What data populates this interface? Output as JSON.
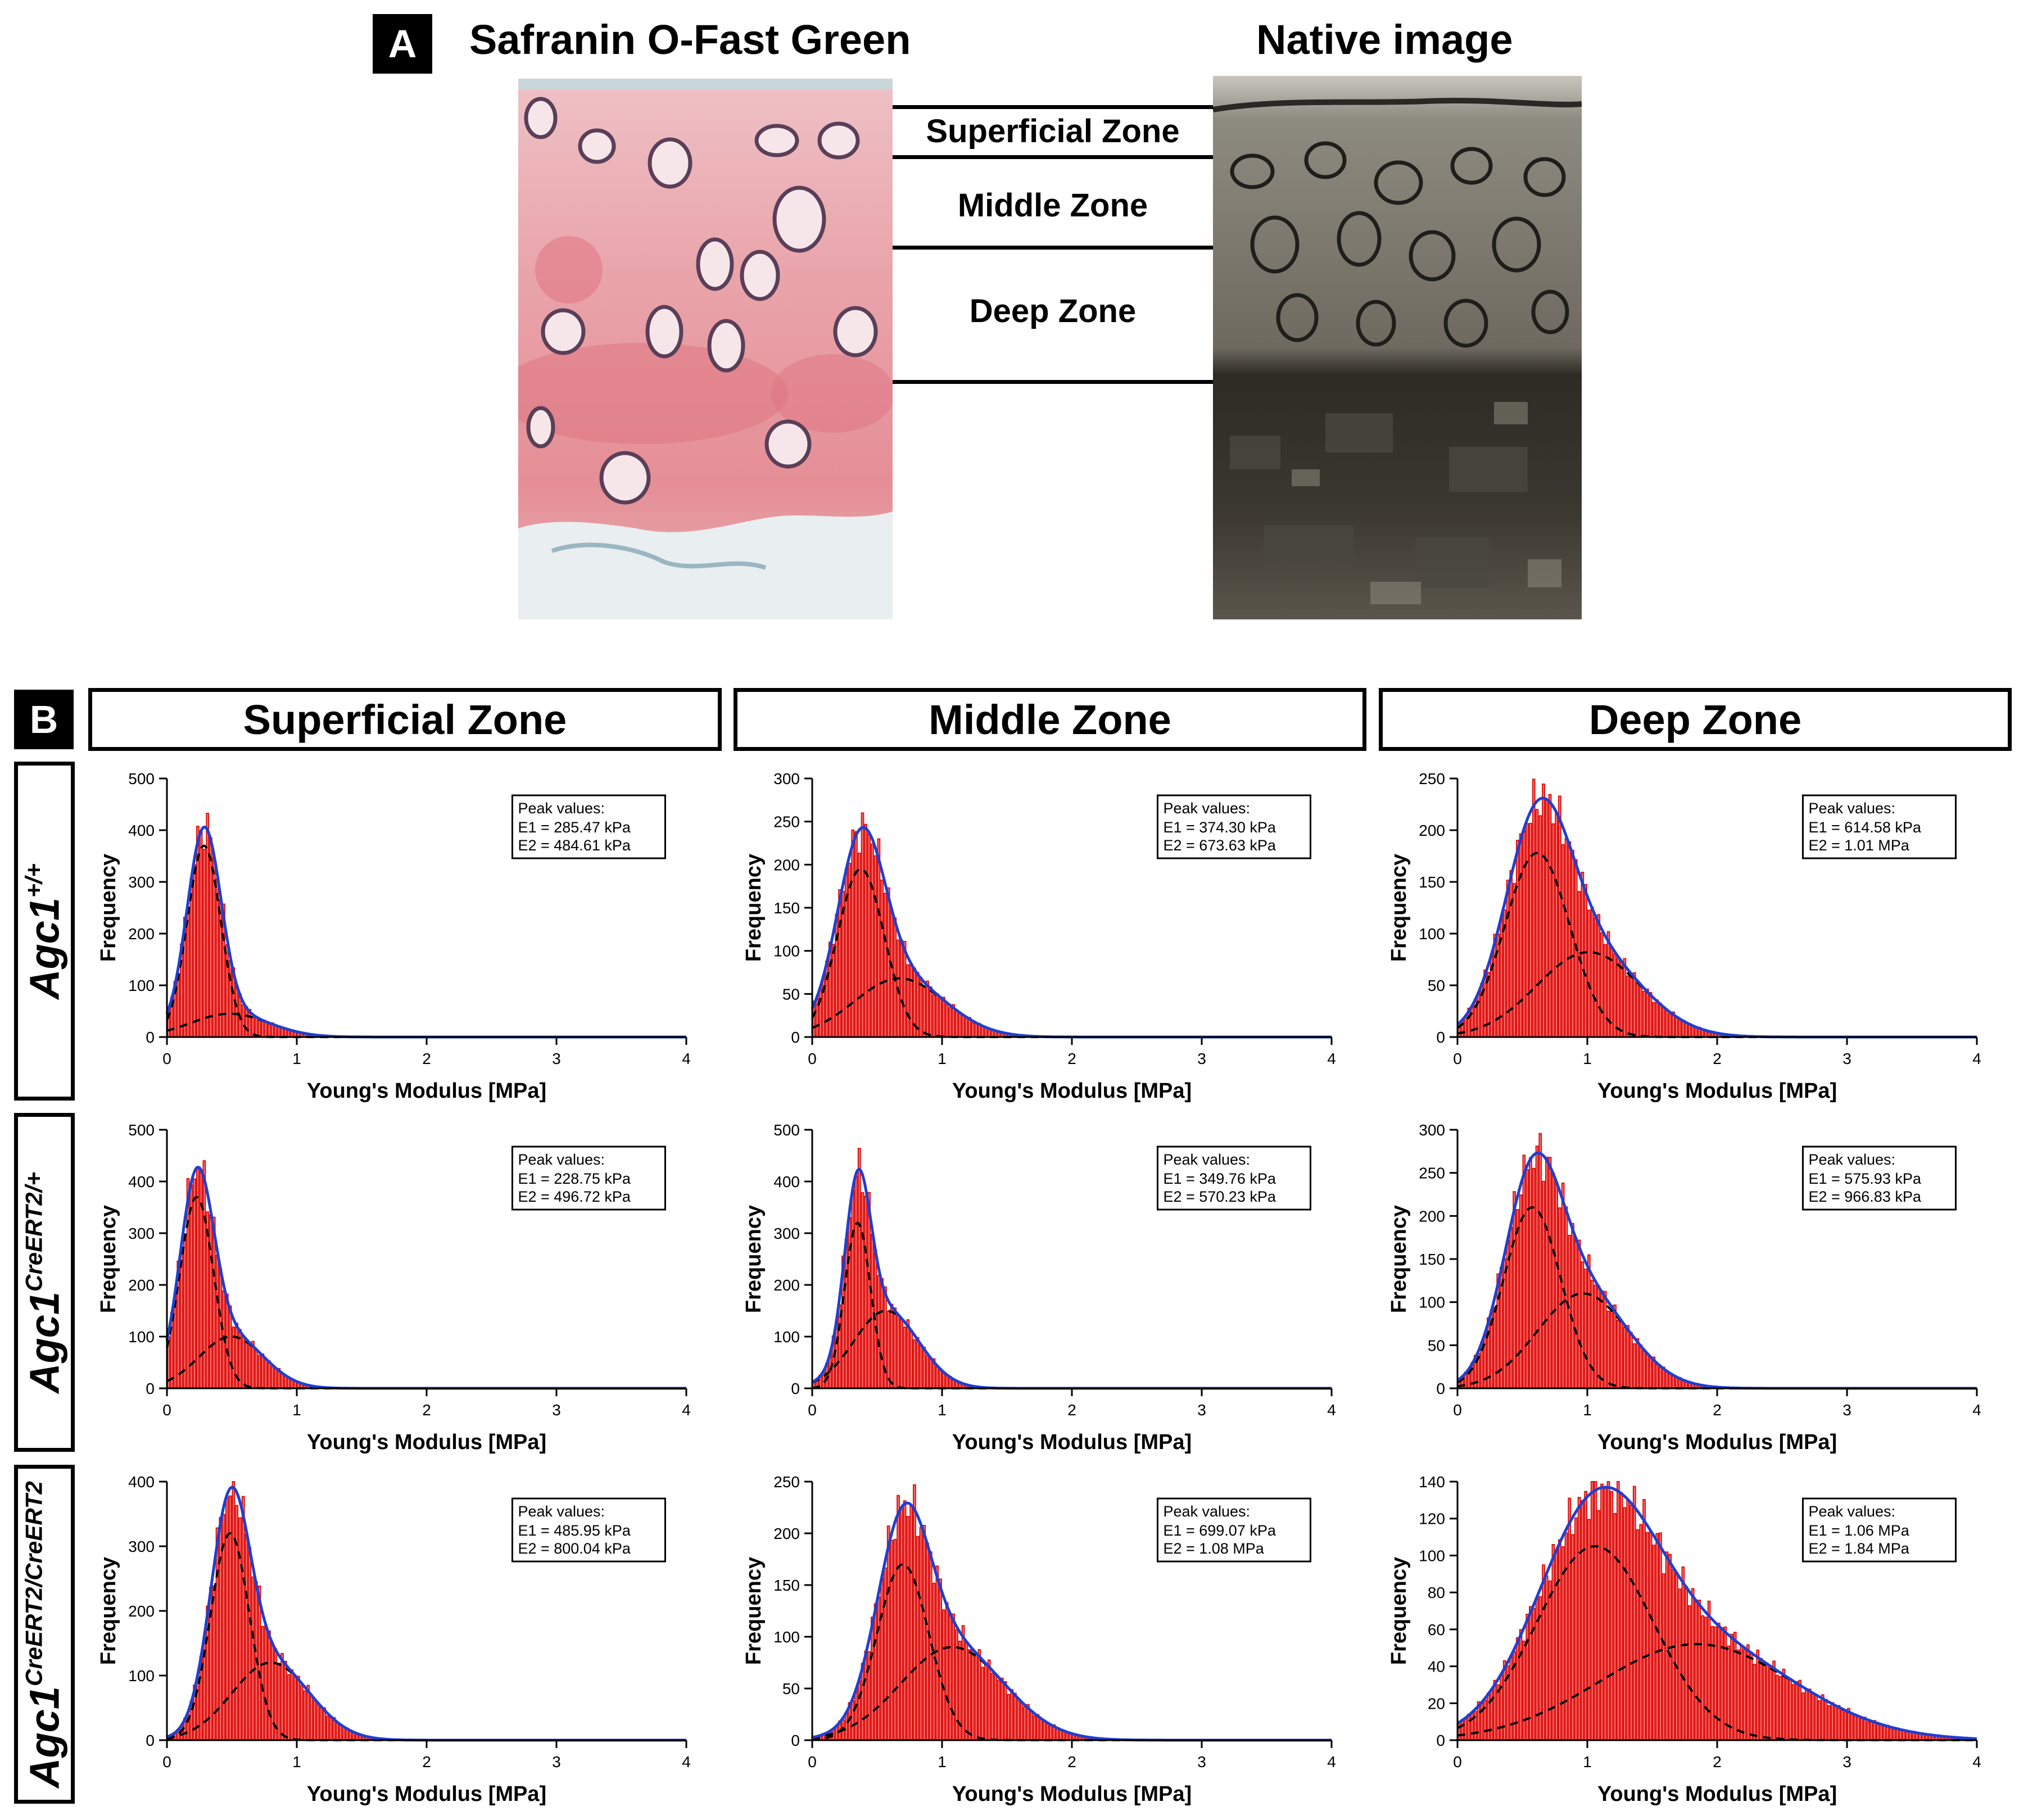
{
  "panel_a": {
    "letter": "A",
    "left_title": "Safranin O-Fast Green",
    "right_title": "Native image",
    "zones": [
      "Superficial Zone",
      "Middle Zone",
      "Deep Zone"
    ]
  },
  "panel_b": {
    "letter": "B",
    "columns": [
      "Superficial Zone",
      "Middle Zone",
      "Deep Zone"
    ],
    "rows": [
      {
        "base": "Agc1",
        "sup": "+/+"
      },
      {
        "base": "Agc1",
        "sup": "CreERT2/+"
      },
      {
        "base": "Agc1",
        "sup": "CreERT2/CreERT2"
      }
    ]
  },
  "colors": {
    "bar_fill": "#f4807a",
    "bar_edge": "#e01010",
    "fit_line": "#1f3fd0",
    "component_line": "#000000",
    "stain_pink": "#e79aa0",
    "native_gray": "#6e6a60"
  },
  "chart_data": [
    {
      "type": "bar",
      "row": 0,
      "col": 0,
      "xlabel": "Young's Modulus [MPa]",
      "ylabel": "Frequency",
      "xlim": [
        0,
        4
      ],
      "xticks": [
        0,
        1,
        2,
        3,
        4
      ],
      "ylim": [
        0,
        500
      ],
      "yticks": [
        0,
        100,
        200,
        300,
        400,
        500
      ],
      "peak_title": "Peak values:",
      "peak_lines": [
        "E1 = 285.47 kPa",
        "E2 = 484.61 kPa"
      ],
      "components": [
        {
          "mu": 0.28547,
          "sigma": 0.13,
          "amp": 370
        },
        {
          "mu": 0.48461,
          "sigma": 0.3,
          "amp": 45
        }
      ]
    },
    {
      "type": "bar",
      "row": 0,
      "col": 1,
      "xlabel": "Young's Modulus [MPa]",
      "ylabel": "Frequency",
      "xlim": [
        0,
        4
      ],
      "xticks": [
        0,
        1,
        2,
        3,
        4
      ],
      "ylim": [
        0,
        300
      ],
      "yticks": [
        0,
        50,
        100,
        150,
        200,
        250,
        300
      ],
      "peak_title": "Peak values:",
      "peak_lines": [
        "E1 = 374.30 kPa",
        "E2 = 673.63 kPa"
      ],
      "components": [
        {
          "mu": 0.3743,
          "sigma": 0.18,
          "amp": 195
        },
        {
          "mu": 0.67363,
          "sigma": 0.35,
          "amp": 68
        }
      ]
    },
    {
      "type": "bar",
      "row": 0,
      "col": 2,
      "xlabel": "Young's Modulus [MPa]",
      "ylabel": "Frequency",
      "xlim": [
        0,
        4
      ],
      "xticks": [
        0,
        1,
        2,
        3,
        4
      ],
      "ylim": [
        0,
        250
      ],
      "yticks": [
        0,
        50,
        100,
        150,
        200,
        250
      ],
      "peak_title": "Peak values:",
      "peak_lines": [
        "E1 = 614.58 kPa",
        "E2 = 1.01 MPa"
      ],
      "components": [
        {
          "mu": 0.61458,
          "sigma": 0.25,
          "amp": 178
        },
        {
          "mu": 1.01,
          "sigma": 0.4,
          "amp": 82
        }
      ]
    },
    {
      "type": "bar",
      "row": 1,
      "col": 0,
      "xlabel": "Young's Modulus [MPa]",
      "ylabel": "Frequency",
      "xlim": [
        0,
        4
      ],
      "xticks": [
        0,
        1,
        2,
        3,
        4
      ],
      "ylim": [
        0,
        500
      ],
      "yticks": [
        0,
        100,
        200,
        300,
        400,
        500
      ],
      "peak_title": "Peak values:",
      "peak_lines": [
        "E1 = 228.75 kPa",
        "E2 = 496.72 kPa"
      ],
      "components": [
        {
          "mu": 0.22875,
          "sigma": 0.13,
          "amp": 370
        },
        {
          "mu": 0.49672,
          "sigma": 0.25,
          "amp": 100
        }
      ]
    },
    {
      "type": "bar",
      "row": 1,
      "col": 1,
      "xlabel": "Young's Modulus [MPa]",
      "ylabel": "Frequency",
      "xlim": [
        0,
        4
      ],
      "xticks": [
        0,
        1,
        2,
        3,
        4
      ],
      "ylim": [
        0,
        500
      ],
      "yticks": [
        0,
        100,
        200,
        300,
        400,
        500
      ],
      "peak_title": "Peak values:",
      "peak_lines": [
        "E1 = 349.76 kPa",
        "E2 = 570.23 kPa"
      ],
      "components": [
        {
          "mu": 0.34976,
          "sigma": 0.1,
          "amp": 320
        },
        {
          "mu": 0.57023,
          "sigma": 0.25,
          "amp": 150
        }
      ]
    },
    {
      "type": "bar",
      "row": 1,
      "col": 2,
      "xlabel": "Young's Modulus [MPa]",
      "ylabel": "Frequency",
      "xlim": [
        0,
        4
      ],
      "xticks": [
        0,
        1,
        2,
        3,
        4
      ],
      "ylim": [
        0,
        300
      ],
      "yticks": [
        0,
        50,
        100,
        150,
        200,
        250,
        300
      ],
      "peak_title": "Peak values:",
      "peak_lines": [
        "E1 = 575.93 kPa",
        "E2 = 966.83 kPa"
      ],
      "components": [
        {
          "mu": 0.57593,
          "sigma": 0.22,
          "amp": 210
        },
        {
          "mu": 0.96683,
          "sigma": 0.35,
          "amp": 110
        }
      ]
    },
    {
      "type": "bar",
      "row": 2,
      "col": 0,
      "xlabel": "Young's Modulus [MPa]",
      "ylabel": "Frequency",
      "xlim": [
        0,
        4
      ],
      "xticks": [
        0,
        1,
        2,
        3,
        4
      ],
      "ylim": [
        0,
        400
      ],
      "yticks": [
        0,
        100,
        200,
        300,
        400
      ],
      "peak_title": "Peak values:",
      "peak_lines": [
        "E1 = 485.95 kPa",
        "E2 = 800.04 kPa"
      ],
      "components": [
        {
          "mu": 0.48595,
          "sigma": 0.15,
          "amp": 320
        },
        {
          "mu": 0.80004,
          "sigma": 0.3,
          "amp": 120
        }
      ]
    },
    {
      "type": "bar",
      "row": 2,
      "col": 1,
      "xlabel": "Young's Modulus [MPa]",
      "ylabel": "Frequency",
      "xlim": [
        0,
        4
      ],
      "xticks": [
        0,
        1,
        2,
        3,
        4
      ],
      "ylim": [
        0,
        250
      ],
      "yticks": [
        0,
        50,
        100,
        150,
        200,
        250
      ],
      "peak_title": "Peak values:",
      "peak_lines": [
        "E1 = 699.07 kPa",
        "E2 = 1.08 MPa"
      ],
      "components": [
        {
          "mu": 0.69907,
          "sigma": 0.2,
          "amp": 170
        },
        {
          "mu": 1.08,
          "sigma": 0.4,
          "amp": 90
        }
      ]
    },
    {
      "type": "bar",
      "row": 2,
      "col": 2,
      "xlabel": "Young's Modulus [MPa]",
      "ylabel": "Frequency",
      "xlim": [
        0,
        4
      ],
      "xticks": [
        0,
        1,
        2,
        3,
        4
      ],
      "ylim": [
        0,
        140
      ],
      "yticks": [
        0,
        20,
        40,
        60,
        80,
        100,
        120,
        140
      ],
      "peak_title": "Peak values:",
      "peak_lines": [
        "E1 = 1.06 MPa",
        "E2 = 1.84 MPa"
      ],
      "components": [
        {
          "mu": 1.06,
          "sigma": 0.45,
          "amp": 105
        },
        {
          "mu": 1.84,
          "sigma": 0.75,
          "amp": 52
        }
      ]
    }
  ]
}
